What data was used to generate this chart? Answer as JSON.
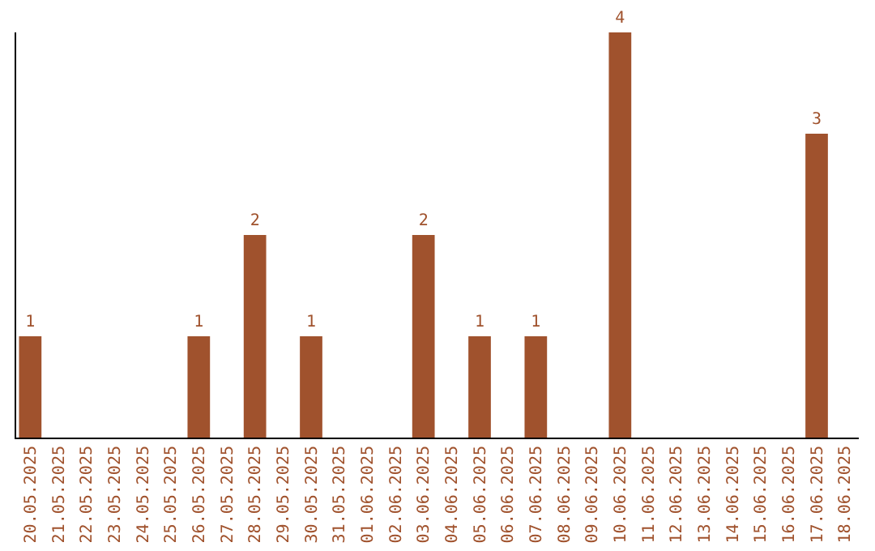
{
  "chart_data": {
    "type": "bar",
    "categories": [
      "20.05.2025",
      "21.05.2025",
      "22.05.2025",
      "23.05.2025",
      "24.05.2025",
      "25.05.2025",
      "26.05.2025",
      "27.05.2025",
      "28.05.2025",
      "29.05.2025",
      "30.05.2025",
      "31.05.2025",
      "01.06.2025",
      "02.06.2025",
      "03.06.2025",
      "04.06.2025",
      "05.06.2025",
      "06.06.2025",
      "07.06.2025",
      "08.06.2025",
      "09.06.2025",
      "10.06.2025",
      "11.06.2025",
      "12.06.2025",
      "13.06.2025",
      "14.06.2025",
      "15.06.2025",
      "16.06.2025",
      "17.06.2025",
      "18.06.2025"
    ],
    "values": [
      1,
      null,
      null,
      null,
      null,
      null,
      1,
      null,
      2,
      null,
      1,
      null,
      null,
      null,
      2,
      null,
      1,
      null,
      1,
      null,
      null,
      4,
      null,
      null,
      null,
      null,
      null,
      null,
      3,
      null
    ],
    "color": "#a0522d",
    "data_labels": true,
    "ylim": [
      0,
      4
    ],
    "tick_labels": "x"
  }
}
